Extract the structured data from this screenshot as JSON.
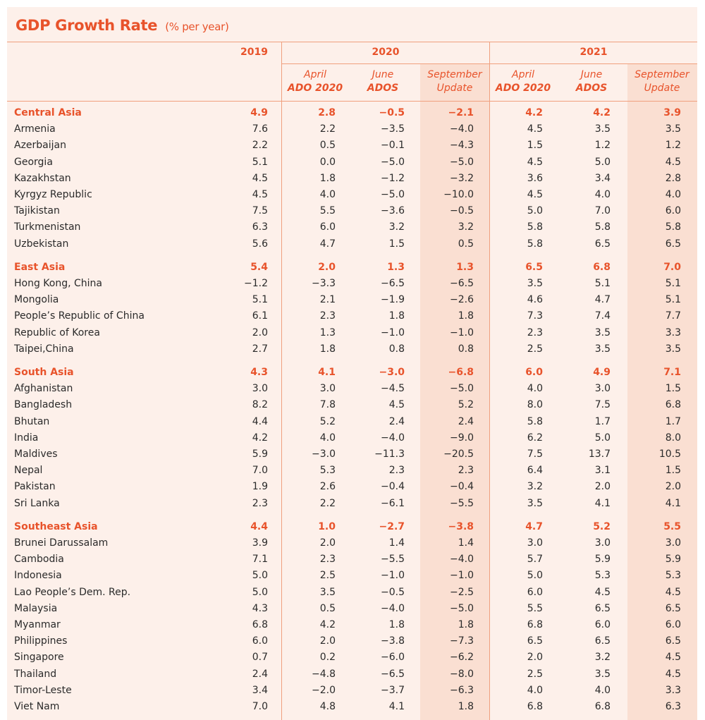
{
  "title": "GDP Growth Rate",
  "subtitle": "(% per year)",
  "colors": {
    "accent": "#e8532b",
    "panel_bg": "#fdf0ea",
    "highlight_col": "#fadfd2",
    "rule": "#f0a07e"
  },
  "header": {
    "years": [
      "2019",
      "2020",
      "2021"
    ],
    "subcolumns": [
      {
        "line1": "April",
        "line2": "ADO 2020"
      },
      {
        "line1": "June",
        "line2": "ADOS"
      },
      {
        "line1": "September",
        "line2": "Update"
      },
      {
        "line1": "April",
        "line2": "ADO 2020"
      },
      {
        "line1": "June",
        "line2": "ADOS"
      },
      {
        "line1": "September",
        "line2": "Update"
      }
    ]
  },
  "groups": [
    {
      "name": "Central Asia",
      "values": [
        "4.9",
        "2.8",
        "−0.5",
        "−2.1",
        "4.2",
        "4.2",
        "3.9"
      ],
      "rows": [
        {
          "name": "Armenia",
          "values": [
            "7.6",
            "2.2",
            "−3.5",
            "−4.0",
            "4.5",
            "3.5",
            "3.5"
          ]
        },
        {
          "name": "Azerbaijan",
          "values": [
            "2.2",
            "0.5",
            "−0.1",
            "−4.3",
            "1.5",
            "1.2",
            "1.2"
          ]
        },
        {
          "name": "Georgia",
          "values": [
            "5.1",
            "0.0",
            "−5.0",
            "−5.0",
            "4.5",
            "5.0",
            "4.5"
          ]
        },
        {
          "name": "Kazakhstan",
          "values": [
            "4.5",
            "1.8",
            "−1.2",
            "−3.2",
            "3.6",
            "3.4",
            "2.8"
          ]
        },
        {
          "name": "Kyrgyz Republic",
          "values": [
            "4.5",
            "4.0",
            "−5.0",
            "−10.0",
            "4.5",
            "4.0",
            "4.0"
          ]
        },
        {
          "name": "Tajikistan",
          "values": [
            "7.5",
            "5.5",
            "−3.6",
            "−0.5",
            "5.0",
            "7.0",
            "6.0"
          ]
        },
        {
          "name": "Turkmenistan",
          "values": [
            "6.3",
            "6.0",
            "3.2",
            "3.2",
            "5.8",
            "5.8",
            "5.8"
          ]
        },
        {
          "name": "Uzbekistan",
          "values": [
            "5.6",
            "4.7",
            "1.5",
            "0.5",
            "5.8",
            "6.5",
            "6.5"
          ]
        }
      ]
    },
    {
      "name": "East Asia",
      "values": [
        "5.4",
        "2.0",
        "1.3",
        "1.3",
        "6.5",
        "6.8",
        "7.0"
      ],
      "rows": [
        {
          "name": "Hong Kong, China",
          "values": [
            "−1.2",
            "−3.3",
            "−6.5",
            "−6.5",
            "3.5",
            "5.1",
            "5.1"
          ]
        },
        {
          "name": "Mongolia",
          "values": [
            "5.1",
            "2.1",
            "−1.9",
            "−2.6",
            "4.6",
            "4.7",
            "5.1"
          ]
        },
        {
          "name": "People’s Republic of China",
          "values": [
            "6.1",
            "2.3",
            "1.8",
            "1.8",
            "7.3",
            "7.4",
            "7.7"
          ]
        },
        {
          "name": "Republic of Korea",
          "values": [
            "2.0",
            "1.3",
            "−1.0",
            "−1.0",
            "2.3",
            "3.5",
            "3.3"
          ]
        },
        {
          "name": "Taipei,China",
          "values": [
            "2.7",
            "1.8",
            "0.8",
            "0.8",
            "2.5",
            "3.5",
            "3.5"
          ]
        }
      ]
    },
    {
      "name": "South Asia",
      "values": [
        "4.3",
        "4.1",
        "−3.0",
        "−6.8",
        "6.0",
        "4.9",
        "7.1"
      ],
      "rows": [
        {
          "name": "Afghanistan",
          "values": [
            "3.0",
            "3.0",
            "−4.5",
            "−5.0",
            "4.0",
            "3.0",
            "1.5"
          ]
        },
        {
          "name": "Bangladesh",
          "values": [
            "8.2",
            "7.8",
            "4.5",
            "5.2",
            "8.0",
            "7.5",
            "6.8"
          ]
        },
        {
          "name": "Bhutan",
          "values": [
            "4.4",
            "5.2",
            "2.4",
            "2.4",
            "5.8",
            "1.7",
            "1.7"
          ]
        },
        {
          "name": "India",
          "values": [
            "4.2",
            "4.0",
            "−4.0",
            "−9.0",
            "6.2",
            "5.0",
            "8.0"
          ]
        },
        {
          "name": "Maldives",
          "values": [
            "5.9",
            "−3.0",
            "−11.3",
            "−20.5",
            "7.5",
            "13.7",
            "10.5"
          ]
        },
        {
          "name": "Nepal",
          "values": [
            "7.0",
            "5.3",
            "2.3",
            "2.3",
            "6.4",
            "3.1",
            "1.5"
          ]
        },
        {
          "name": "Pakistan",
          "values": [
            "1.9",
            "2.6",
            "−0.4",
            "−0.4",
            "3.2",
            "2.0",
            "2.0"
          ]
        },
        {
          "name": "Sri Lanka",
          "values": [
            "2.3",
            "2.2",
            "−6.1",
            "−5.5",
            "3.5",
            "4.1",
            "4.1"
          ]
        }
      ]
    },
    {
      "name": "Southeast Asia",
      "values": [
        "4.4",
        "1.0",
        "−2.7",
        "−3.8",
        "4.7",
        "5.2",
        "5.5"
      ],
      "rows": [
        {
          "name": "Brunei Darussalam",
          "values": [
            "3.9",
            "2.0",
            "1.4",
            "1.4",
            "3.0",
            "3.0",
            "3.0"
          ]
        },
        {
          "name": "Cambodia",
          "values": [
            "7.1",
            "2.3",
            "−5.5",
            "−4.0",
            "5.7",
            "5.9",
            "5.9"
          ]
        },
        {
          "name": "Indonesia",
          "values": [
            "5.0",
            "2.5",
            "−1.0",
            "−1.0",
            "5.0",
            "5.3",
            "5.3"
          ]
        },
        {
          "name": "Lao People’s Dem. Rep.",
          "values": [
            "5.0",
            "3.5",
            "−0.5",
            "−2.5",
            "6.0",
            "4.5",
            "4.5"
          ]
        },
        {
          "name": "Malaysia",
          "values": [
            "4.3",
            "0.5",
            "−4.0",
            "−5.0",
            "5.5",
            "6.5",
            "6.5"
          ]
        },
        {
          "name": "Myanmar",
          "values": [
            "6.8",
            "4.2",
            "1.8",
            "1.8",
            "6.8",
            "6.0",
            "6.0"
          ]
        },
        {
          "name": "Philippines",
          "values": [
            "6.0",
            "2.0",
            "−3.8",
            "−7.3",
            "6.5",
            "6.5",
            "6.5"
          ]
        },
        {
          "name": "Singapore",
          "values": [
            "0.7",
            "0.2",
            "−6.0",
            "−6.2",
            "2.0",
            "3.2",
            "4.5"
          ]
        },
        {
          "name": "Thailand",
          "values": [
            "2.4",
            "−4.8",
            "−6.5",
            "−8.0",
            "2.5",
            "3.5",
            "4.5"
          ]
        },
        {
          "name": "Timor-Leste",
          "values": [
            "3.4",
            "−2.0",
            "−3.7",
            "−6.3",
            "4.0",
            "4.0",
            "3.3"
          ]
        },
        {
          "name": "Viet Nam",
          "values": [
            "7.0",
            "4.8",
            "4.1",
            "1.8",
            "6.8",
            "6.8",
            "6.3"
          ]
        }
      ]
    }
  ]
}
